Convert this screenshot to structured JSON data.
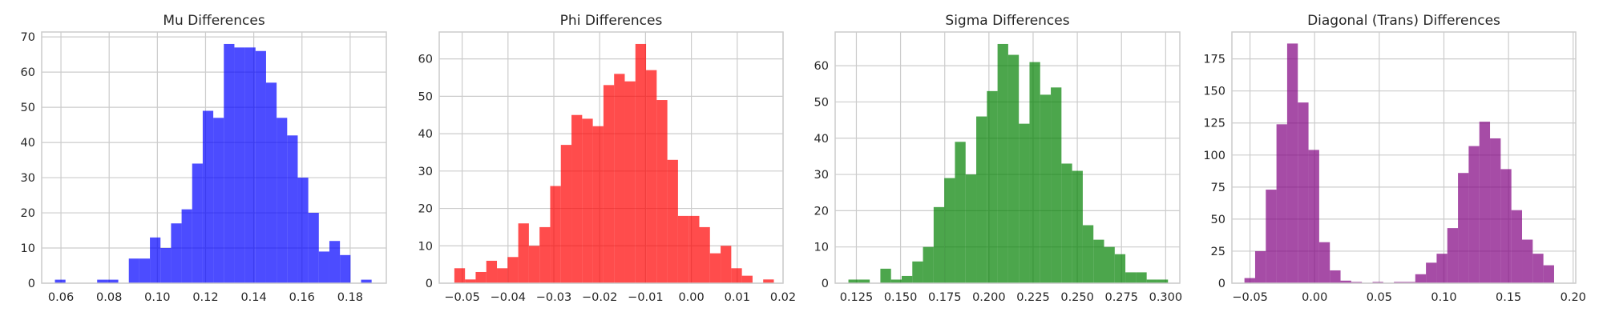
{
  "chart_data": [
    {
      "type": "bar",
      "title": "Mu Differences",
      "color": "#0000ff",
      "xlabel": "",
      "ylabel": "",
      "xlim": [
        0.052,
        0.195
      ],
      "ylim": [
        0,
        71.4
      ],
      "x_ticks": [
        "0.06",
        "0.08",
        "0.10",
        "0.12",
        "0.14",
        "0.16",
        "0.18"
      ],
      "y_ticks": [
        "0",
        "10",
        "20",
        "30",
        "40",
        "50",
        "60",
        "70"
      ],
      "grid": true,
      "bins": {
        "start": 0.0575,
        "width": 0.00438,
        "counts": [
          1,
          0,
          0,
          0,
          1,
          1,
          0,
          7,
          7,
          13,
          10,
          17,
          21,
          34,
          49,
          47,
          68,
          67,
          67,
          66,
          57,
          47,
          42,
          30,
          20,
          9,
          12,
          8,
          0,
          1
        ]
      }
    },
    {
      "type": "bar",
      "title": "Phi Differences",
      "color": "#ff0000",
      "xlabel": "",
      "ylabel": "",
      "xlim": [
        -0.055,
        0.02
      ],
      "ylim": [
        0,
        67.2
      ],
      "x_ticks": [
        "−0.05",
        "−0.04",
        "−0.03",
        "−0.02",
        "−0.01",
        "0.00",
        "0.01",
        "0.02"
      ],
      "y_ticks": [
        "0",
        "10",
        "20",
        "30",
        "40",
        "50",
        "60"
      ],
      "grid": true,
      "bins": {
        "start": -0.0517,
        "width": 0.002323,
        "counts": [
          4,
          1,
          3,
          6,
          4,
          7,
          16,
          10,
          15,
          26,
          37,
          45,
          44,
          42,
          53,
          56,
          54,
          64,
          57,
          49,
          33,
          18,
          18,
          15,
          8,
          10,
          4,
          2,
          0,
          1
        ]
      }
    },
    {
      "type": "bar",
      "title": "Sigma Differences",
      "color": "#008000",
      "xlabel": "",
      "ylabel": "",
      "xlim": [
        0.113,
        0.308
      ],
      "ylim": [
        0,
        69.3
      ],
      "x_ticks": [
        "0.125",
        "0.150",
        "0.175",
        "0.200",
        "0.225",
        "0.250",
        "0.275",
        "0.300"
      ],
      "y_ticks": [
        "0",
        "10",
        "20",
        "30",
        "40",
        "50",
        "60"
      ],
      "grid": true,
      "bins": {
        "start": 0.1205,
        "width": 0.006027,
        "counts": [
          1,
          1,
          0,
          4,
          1,
          2,
          6,
          10,
          21,
          29,
          39,
          30,
          46,
          53,
          66,
          63,
          44,
          61,
          52,
          54,
          33,
          31,
          16,
          12,
          10,
          8,
          3,
          3,
          1,
          1
        ]
      }
    },
    {
      "type": "bar",
      "title": "Diagonal (Trans) Differences",
      "color": "#800080",
      "xlabel": "",
      "ylabel": "",
      "xlim": [
        -0.064,
        0.202
      ],
      "ylim": [
        0,
        196
      ],
      "x_ticks": [
        "−0.05",
        "0.00",
        "0.05",
        "0.10",
        "0.15",
        "0.20"
      ],
      "y_ticks": [
        "0",
        "25",
        "50",
        "75",
        "100",
        "125",
        "150",
        "175"
      ],
      "grid": true,
      "bins": {
        "start": -0.0543,
        "width": 0.00826,
        "counts": [
          4,
          25,
          73,
          124,
          187,
          141,
          104,
          32,
          10,
          2,
          1,
          0,
          1,
          0,
          1,
          1,
          7,
          16,
          23,
          43,
          86,
          107,
          126,
          113,
          89,
          57,
          34,
          23,
          14,
          0
        ]
      }
    }
  ]
}
